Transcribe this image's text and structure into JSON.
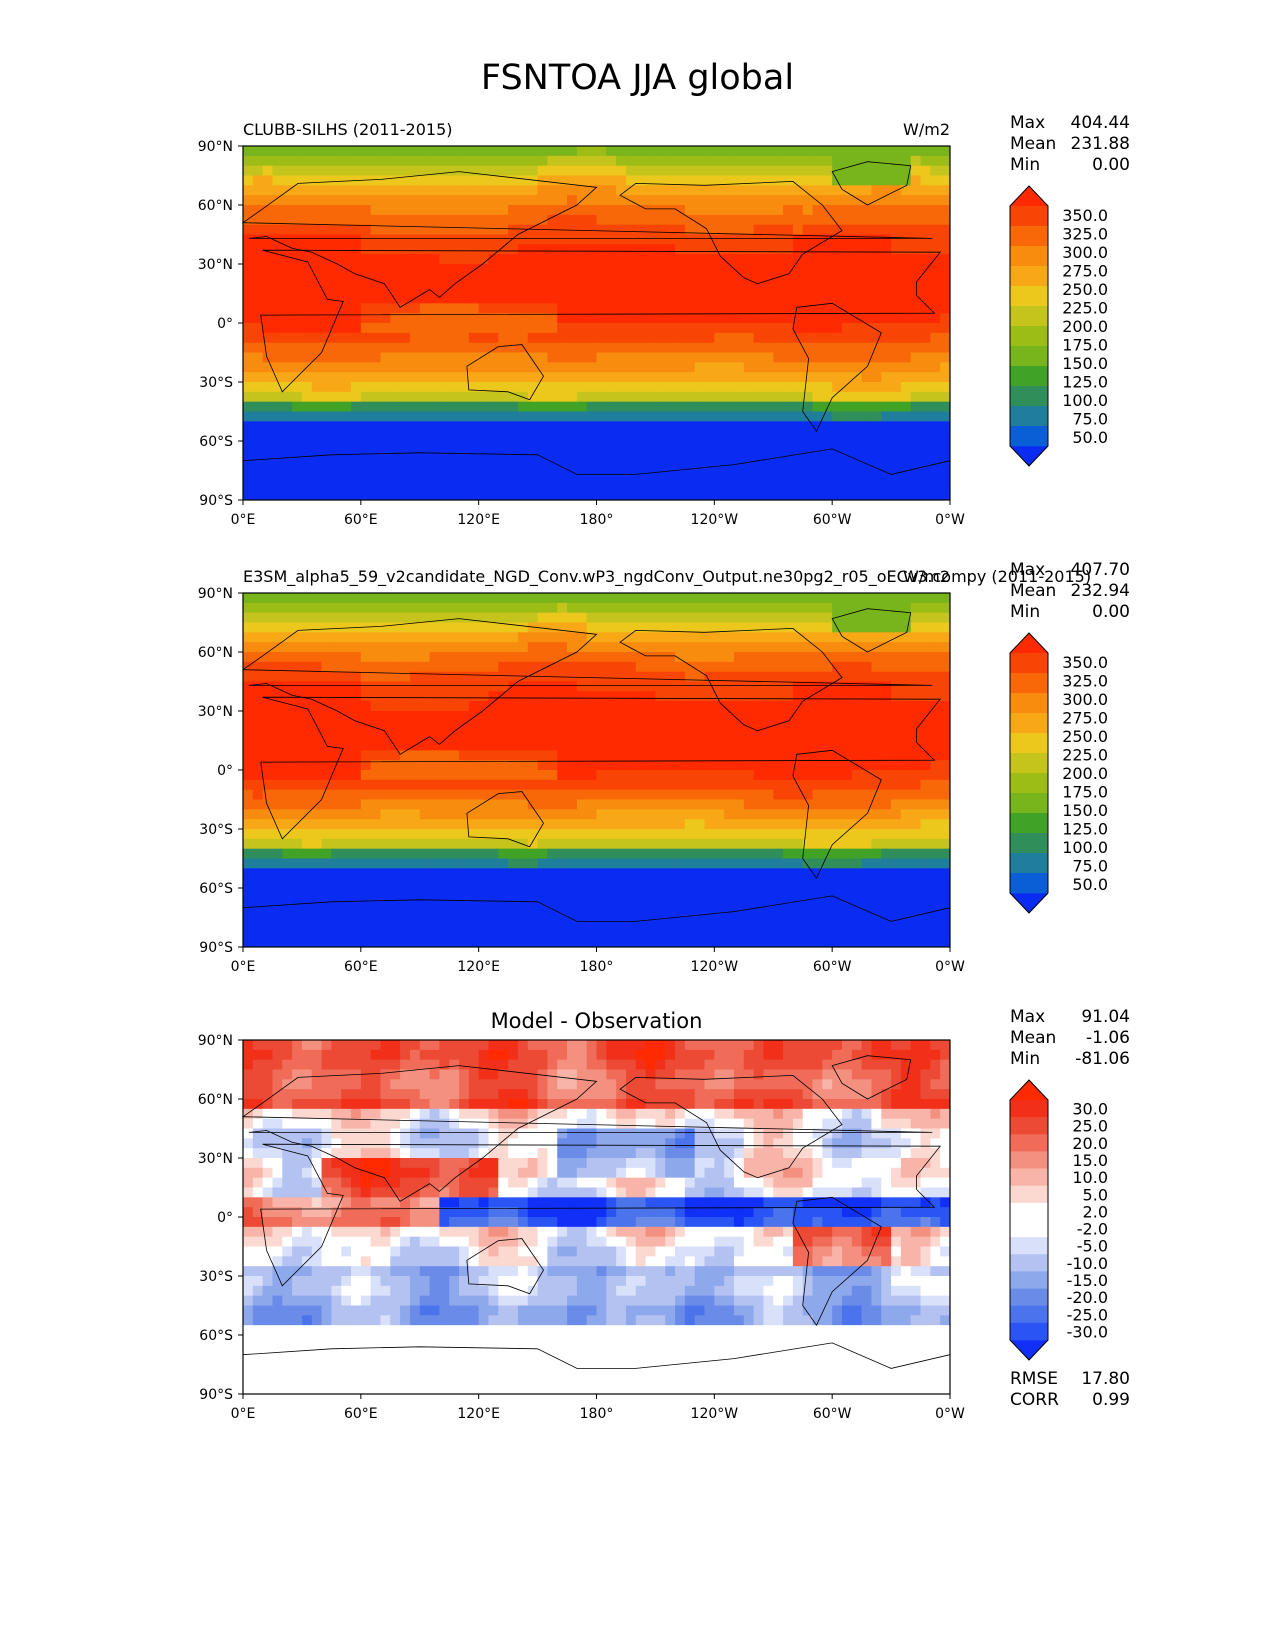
{
  "figure": {
    "title": "FSNTOA JJA global",
    "units": "W/m2"
  },
  "colors": {
    "land_outline": "#000000",
    "field_scale": [
      "#0a2cf2",
      "#0a5ed6",
      "#1f7e9c",
      "#2f8e5a",
      "#40a226",
      "#78b41c",
      "#9cbc16",
      "#c4c41c",
      "#ecc81c",
      "#f8a816",
      "#f88c0e",
      "#f86808",
      "#f84404",
      "#ff2a00"
    ],
    "diff_scale": [
      "#1030f8",
      "#2a55f4",
      "#4a73ec",
      "#6a8ce8",
      "#8ea8ec",
      "#b4c2f2",
      "#d8e0fa",
      "#ffffff",
      "#ffffff",
      "#fbd8d0",
      "#f8b4a8",
      "#f49080",
      "#f06c58",
      "#ec4a34",
      "#f2301a",
      "#ff2a00"
    ]
  },
  "chart_data": [
    {
      "type": "heatmap",
      "subplot": "test",
      "title_left": "CLUBB-SILHS (2011-2015)",
      "title_right": "W/m2",
      "stats": [
        {
          "label": "Max",
          "value": "404.44"
        },
        {
          "label": "Mean",
          "value": "231.88"
        },
        {
          "label": "Min",
          "value": "0.00"
        }
      ],
      "xlabels": [
        "0°E",
        "60°E",
        "120°E",
        "180°",
        "120°W",
        "60°W",
        "0°W"
      ],
      "ylabels": [
        "90°N",
        "60°N",
        "30°N",
        "0°",
        "30°S",
        "60°S",
        "90°S"
      ],
      "colorbar_ticks": [
        "350.0",
        "325.0",
        "300.0",
        "275.0",
        "250.0",
        "225.0",
        "200.0",
        "175.0",
        "150.0",
        "125.0",
        "100.0",
        "75.0",
        "50.0"
      ]
    },
    {
      "type": "heatmap",
      "subplot": "reference",
      "title_left": "E3SM_alpha5_59_v2candidate_NGD_Conv.wP3_ngdConv_Output.ne30pg2_r05_oECv3.compy (2011-2015)",
      "title_right": "W/m2",
      "stats": [
        {
          "label": "Max",
          "value": "407.70"
        },
        {
          "label": "Mean",
          "value": "232.94"
        },
        {
          "label": "Min",
          "value": "0.00"
        }
      ],
      "xlabels": [
        "0°E",
        "60°E",
        "120°E",
        "180°",
        "120°W",
        "60°W",
        "0°W"
      ],
      "ylabels": [
        "90°N",
        "60°N",
        "30°N",
        "0°",
        "30°S",
        "60°S",
        "90°S"
      ],
      "colorbar_ticks": [
        "350.0",
        "325.0",
        "300.0",
        "275.0",
        "250.0",
        "225.0",
        "200.0",
        "175.0",
        "150.0",
        "125.0",
        "100.0",
        "75.0",
        "50.0"
      ]
    },
    {
      "type": "heatmap",
      "subplot": "difference",
      "title_center": "Model - Observation",
      "stats": [
        {
          "label": "Max",
          "value": "91.04"
        },
        {
          "label": "Mean",
          "value": "-1.06"
        },
        {
          "label": "Min",
          "value": "-81.06"
        }
      ],
      "extra_stats": [
        {
          "label": "RMSE",
          "value": "17.80"
        },
        {
          "label": "CORR",
          "value": "0.99"
        }
      ],
      "xlabels": [
        "0°E",
        "60°E",
        "120°E",
        "180°",
        "120°W",
        "60°W",
        "0°W"
      ],
      "ylabels": [
        "90°N",
        "60°N",
        "30°N",
        "0°",
        "30°S",
        "60°S",
        "90°S"
      ],
      "colorbar_ticks": [
        "30.0",
        "25.0",
        "20.0",
        "15.0",
        "10.0",
        "5.0",
        "2.0",
        "-2.0",
        "-5.0",
        "-10.0",
        "-15.0",
        "-20.0",
        "-25.0",
        "-30.0"
      ]
    }
  ]
}
